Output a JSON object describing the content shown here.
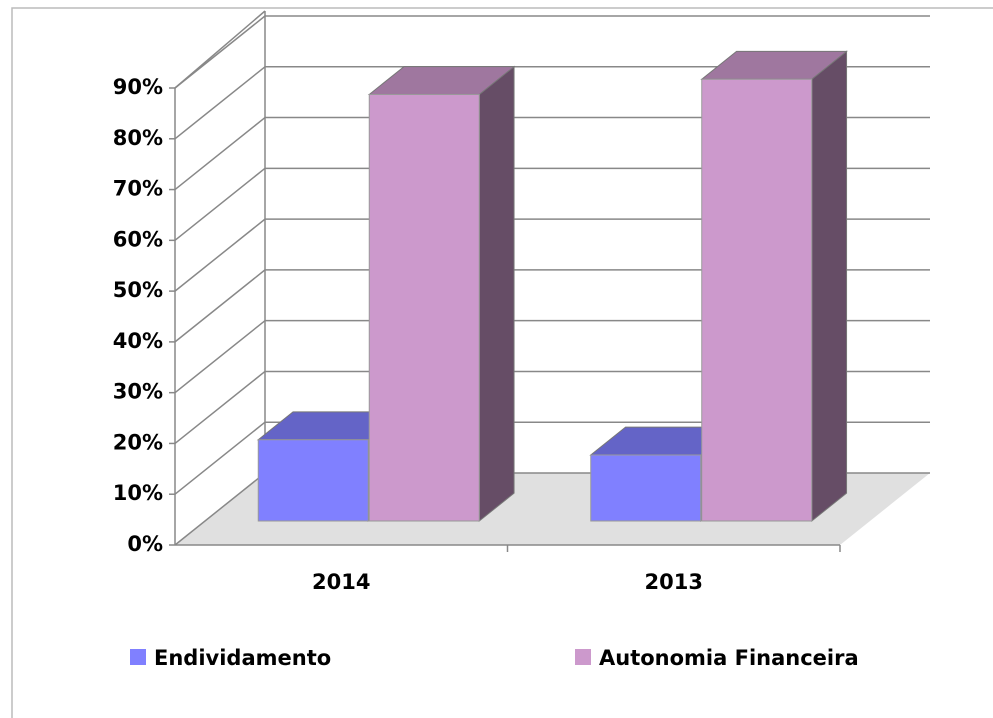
{
  "chart_data": {
    "type": "bar3d",
    "categories": [
      "2014",
      "2013"
    ],
    "series": [
      {
        "name": "Endividamento",
        "color": "#8080ff",
        "values": [
          16,
          13
        ]
      },
      {
        "name": "Autonomia Financeira",
        "color": "#cc99cc",
        "values": [
          84,
          87
        ]
      }
    ],
    "ylim": [
      0,
      90
    ],
    "yticks": [
      {
        "value": 0,
        "label": "0%"
      },
      {
        "value": 10,
        "label": "10%"
      },
      {
        "value": 20,
        "label": "20%"
      },
      {
        "value": 30,
        "label": "30%"
      },
      {
        "value": 40,
        "label": "40%"
      },
      {
        "value": 50,
        "label": "50%"
      },
      {
        "value": 60,
        "label": "60%"
      },
      {
        "value": 70,
        "label": "70%"
      },
      {
        "value": 80,
        "label": "80%"
      },
      {
        "value": 90,
        "label": "90%"
      }
    ],
    "grid": true,
    "legend": "bottom"
  }
}
